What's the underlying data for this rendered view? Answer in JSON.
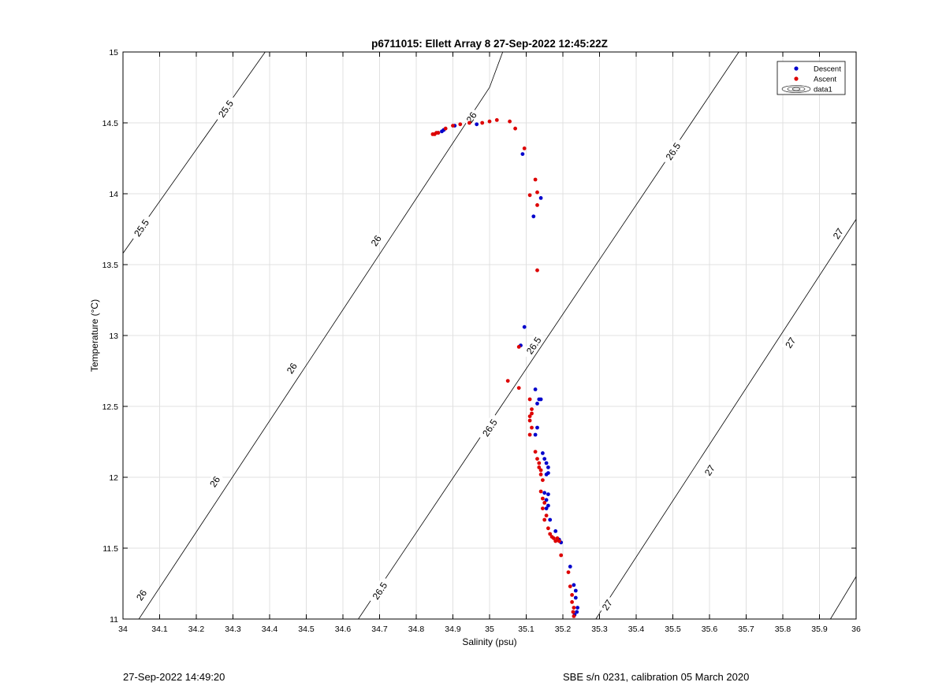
{
  "footer": {
    "left": "27-Sep-2022 14:49:20",
    "right": "SBE s/n 0231, calibration 05 March 2020"
  },
  "colors": {
    "descent": "#0000cc",
    "ascent": "#dd0000",
    "grid": "#e0e0e0",
    "contour": "#000000"
  },
  "chart_data": {
    "type": "scatter",
    "title": "p6711015: Ellett Array 8 27-Sep-2022 12:45:22Z",
    "xlabel": "Salinity (psu)",
    "ylabel": "Temperature (°C)",
    "xlim": [
      34,
      36
    ],
    "ylim": [
      11,
      15
    ],
    "xticks": [
      "34",
      "34.1",
      "34.2",
      "34.3",
      "34.4",
      "34.5",
      "34.6",
      "34.7",
      "34.8",
      "34.9",
      "35",
      "35.1",
      "35.2",
      "35.3",
      "35.4",
      "35.5",
      "35.6",
      "35.7",
      "35.8",
      "35.9",
      "36"
    ],
    "yticks": [
      "11",
      "11.5",
      "12",
      "12.5",
      "13",
      "13.5",
      "14",
      "14.5",
      "15"
    ],
    "grid": true,
    "legend": {
      "position": "top-right",
      "entries": [
        "Descent",
        "Ascent",
        "data1"
      ]
    },
    "isopycnals": [
      {
        "label": "25.5",
        "points": [
          [
            34.0,
            13.58
          ],
          [
            34.388,
            15.0
          ]
        ],
        "labels_at": [
          [
            34.05,
            13.76
          ],
          [
            34.28,
            14.6
          ]
        ]
      },
      {
        "label": "26",
        "points": [
          [
            34.0,
            10.83
          ],
          [
            35.0,
            14.75
          ],
          [
            35.036,
            15.0
          ]
        ],
        "labels_at": [
          [
            34.05,
            11.17
          ],
          [
            34.25,
            11.97
          ],
          [
            34.46,
            12.77
          ],
          [
            34.69,
            13.67
          ],
          [
            34.95,
            14.54
          ]
        ]
      },
      {
        "label": "26.5",
        "points": [
          [
            34.642,
            11.0
          ],
          [
            35.68,
            15.0
          ]
        ],
        "labels_at": [
          [
            34.7,
            11.2
          ],
          [
            35.0,
            12.35
          ],
          [
            35.12,
            12.93
          ],
          [
            35.5,
            14.3
          ]
        ]
      },
      {
        "label": "27",
        "points": [
          [
            35.29,
            11.0
          ],
          [
            36.0,
            13.82
          ]
        ],
        "labels_at": [
          [
            35.32,
            11.1
          ],
          [
            35.6,
            12.05
          ],
          [
            35.82,
            12.95
          ],
          [
            35.95,
            13.72
          ]
        ]
      },
      {
        "label": "",
        "points": [
          [
            35.93,
            11.0
          ],
          [
            36.0,
            11.3
          ]
        ],
        "labels_at": []
      }
    ],
    "series": [
      {
        "name": "Descent",
        "points": [
          [
            34.86,
            14.43
          ],
          [
            34.87,
            14.44
          ],
          [
            34.875,
            14.45
          ],
          [
            34.905,
            14.48
          ],
          [
            34.965,
            14.49
          ],
          [
            35.09,
            14.28
          ],
          [
            35.12,
            13.84
          ],
          [
            35.14,
            13.97
          ],
          [
            35.095,
            13.06
          ],
          [
            35.085,
            12.93
          ],
          [
            35.125,
            12.62
          ],
          [
            35.135,
            12.55
          ],
          [
            35.14,
            12.55
          ],
          [
            35.13,
            12.52
          ],
          [
            35.13,
            12.35
          ],
          [
            35.125,
            12.3
          ],
          [
            35.145,
            12.17
          ],
          [
            35.15,
            12.13
          ],
          [
            35.155,
            12.1
          ],
          [
            35.16,
            12.07
          ],
          [
            35.16,
            12.03
          ],
          [
            35.155,
            12.02
          ],
          [
            35.15,
            11.89
          ],
          [
            35.16,
            11.88
          ],
          [
            35.155,
            11.84
          ],
          [
            35.16,
            11.8
          ],
          [
            35.155,
            11.78
          ],
          [
            35.165,
            11.7
          ],
          [
            35.18,
            11.62
          ],
          [
            35.19,
            11.56
          ],
          [
            35.195,
            11.54
          ],
          [
            35.22,
            11.37
          ],
          [
            35.23,
            11.24
          ],
          [
            35.235,
            11.2
          ],
          [
            35.235,
            11.15
          ],
          [
            35.24,
            11.08
          ],
          [
            35.238,
            11.05
          ],
          [
            35.232,
            11.03
          ]
        ]
      },
      {
        "name": "Ascent",
        "points": [
          [
            34.845,
            14.42
          ],
          [
            34.85,
            14.42
          ],
          [
            34.855,
            14.43
          ],
          [
            34.86,
            14.43
          ],
          [
            34.88,
            14.46
          ],
          [
            34.9,
            14.48
          ],
          [
            34.92,
            14.49
          ],
          [
            34.945,
            14.5
          ],
          [
            34.98,
            14.5
          ],
          [
            35.0,
            14.51
          ],
          [
            35.02,
            14.52
          ],
          [
            35.055,
            14.51
          ],
          [
            35.07,
            14.46
          ],
          [
            35.095,
            14.32
          ],
          [
            35.11,
            13.99
          ],
          [
            35.125,
            14.1
          ],
          [
            35.13,
            14.01
          ],
          [
            35.13,
            13.92
          ],
          [
            35.13,
            13.46
          ],
          [
            35.08,
            12.92
          ],
          [
            35.05,
            12.68
          ],
          [
            35.08,
            12.63
          ],
          [
            35.11,
            12.55
          ],
          [
            35.115,
            12.48
          ],
          [
            35.115,
            12.45
          ],
          [
            35.11,
            12.43
          ],
          [
            35.11,
            12.4
          ],
          [
            35.115,
            12.35
          ],
          [
            35.11,
            12.3
          ],
          [
            35.125,
            12.18
          ],
          [
            35.13,
            12.13
          ],
          [
            35.135,
            12.1
          ],
          [
            35.135,
            12.07
          ],
          [
            35.14,
            12.05
          ],
          [
            35.14,
            12.02
          ],
          [
            35.145,
            11.98
          ],
          [
            35.14,
            11.9
          ],
          [
            35.145,
            11.85
          ],
          [
            35.15,
            11.82
          ],
          [
            35.145,
            11.78
          ],
          [
            35.155,
            11.73
          ],
          [
            35.15,
            11.7
          ],
          [
            35.16,
            11.64
          ],
          [
            35.165,
            11.6
          ],
          [
            35.17,
            11.58
          ],
          [
            35.175,
            11.57
          ],
          [
            35.18,
            11.55
          ],
          [
            35.185,
            11.57
          ],
          [
            35.19,
            11.55
          ],
          [
            35.195,
            11.45
          ],
          [
            35.215,
            11.33
          ],
          [
            35.22,
            11.23
          ],
          [
            35.225,
            11.17
          ],
          [
            35.225,
            11.12
          ],
          [
            35.23,
            11.08
          ],
          [
            35.228,
            11.05
          ],
          [
            35.23,
            11.02
          ]
        ]
      }
    ]
  }
}
